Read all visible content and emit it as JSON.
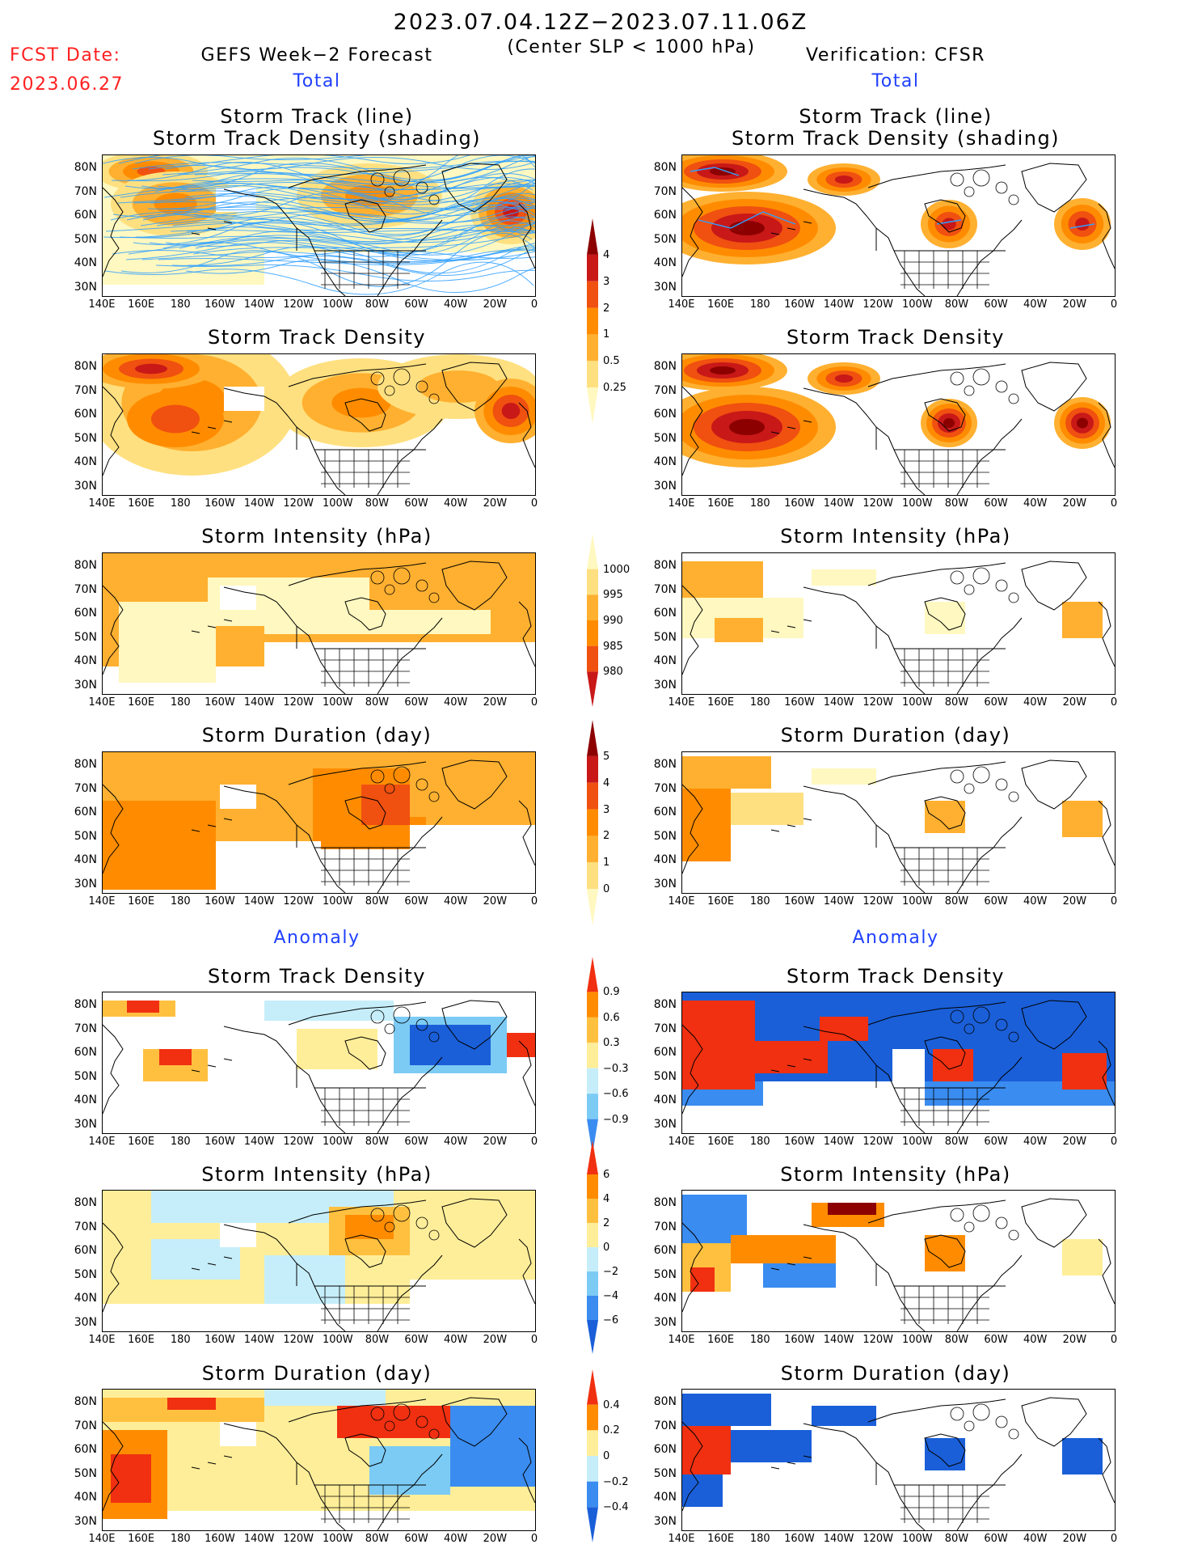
{
  "header": {
    "period": "2023.07.04.12Z−2023.07.11.06Z",
    "criterion": "(Center SLP < 1000 hPa)",
    "fcst_label": "FCST Date:",
    "fcst_date": "2023.06.27",
    "left_model": "GEFS Week−2 Forecast",
    "right_model": "Verification: CFSR",
    "total_label": "Total",
    "anomaly_label": "Anomaly"
  },
  "panel_titles": {
    "track_line": "Storm Track (line)",
    "track_shading": "Storm Track Density (shading)",
    "density": "Storm Track Density",
    "intensity": "Storm Intensity (hPa)",
    "duration": "Storm Duration (day)"
  },
  "axes": {
    "lat_labels": [
      "80N",
      "70N",
      "60N",
      "50N",
      "40N",
      "30N"
    ],
    "lon_labels": [
      "140E",
      "160E",
      "180",
      "160W",
      "140W",
      "120W",
      "100W",
      "80W",
      "60W",
      "40W",
      "20W",
      "0"
    ]
  },
  "colorbars": {
    "density": [
      "4",
      "3",
      "2",
      "1",
      "0.5",
      "0.25"
    ],
    "intensity": [
      "1000",
      "995",
      "990",
      "985",
      "980"
    ],
    "duration": [
      "5",
      "4",
      "3",
      "2",
      "1",
      "0"
    ],
    "density_anom": [
      "0.9",
      "0.6",
      "0.3",
      "−0.3",
      "−0.6",
      "−0.9"
    ],
    "intensity_anom": [
      "6",
      "4",
      "2",
      "0",
      "−2",
      "−4",
      "−6"
    ],
    "duration_anom": [
      "0.4",
      "0.2",
      "0",
      "−0.2",
      "−0.4"
    ]
  },
  "colors": {
    "total_scale": [
      "#fff8c0",
      "#ffe080",
      "#ffb030",
      "#ff8c00",
      "#f05010",
      "#c81818",
      "#8c0000"
    ],
    "anom_scale": [
      "#1a5fd8",
      "#3a8cf0",
      "#7ccbf5",
      "#c6eefa",
      "#ffffff",
      "#ffee99",
      "#ffc040",
      "#ff8c00",
      "#f03010"
    ],
    "track_line": "#30a0ff",
    "title_red": "#ff2020",
    "title_blue": "#2040ff"
  }
}
